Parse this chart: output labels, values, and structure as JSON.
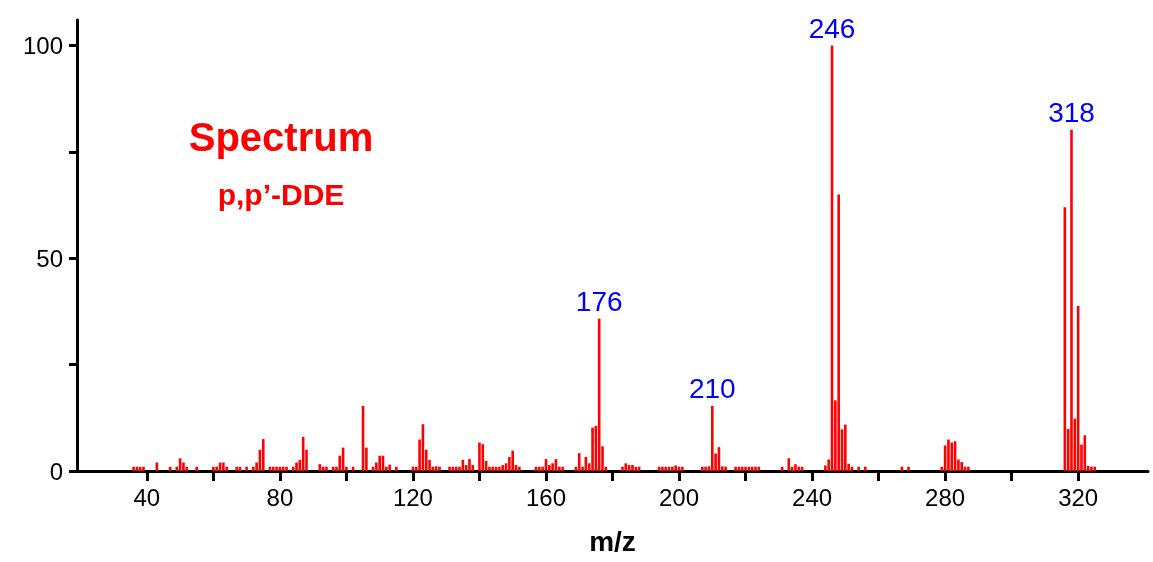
{
  "chart_data": {
    "type": "bar",
    "title": "Spectrum",
    "subtitle": "p,p’-DDE",
    "xlabel": "m/z",
    "x": [
      36,
      37,
      38,
      39,
      43,
      47,
      49,
      50,
      51,
      52,
      55,
      60,
      61,
      62,
      63,
      64,
      67,
      68,
      70,
      72,
      73,
      74,
      75,
      77,
      78,
      79,
      80,
      81,
      82,
      84,
      85,
      86,
      87,
      88,
      92,
      93,
      94,
      96,
      97,
      98,
      99,
      100,
      102,
      105,
      106,
      108,
      109,
      110,
      111,
      112,
      113,
      115,
      120,
      121,
      122,
      123,
      124,
      125,
      126,
      127,
      128,
      131,
      132,
      133,
      134,
      135,
      136,
      137,
      138,
      140,
      141,
      142,
      143,
      144,
      145,
      146,
      147,
      148,
      149,
      150,
      151,
      152,
      157,
      158,
      159,
      160,
      161,
      162,
      163,
      164,
      165,
      169,
      170,
      171,
      172,
      173,
      174,
      175,
      176,
      177,
      178,
      183,
      184,
      185,
      186,
      187,
      188,
      194,
      195,
      196,
      197,
      198,
      199,
      200,
      201,
      207,
      208,
      209,
      210,
      211,
      212,
      213,
      214,
      217,
      218,
      219,
      220,
      221,
      222,
      223,
      224,
      231,
      233,
      234,
      235,
      236,
      237,
      244,
      245,
      246,
      247,
      248,
      249,
      250,
      251,
      252,
      254,
      256,
      267,
      269,
      279,
      280,
      281,
      282,
      283,
      284,
      285,
      286,
      287,
      316,
      317,
      318,
      319,
      320,
      321,
      322,
      323,
      324,
      325
    ],
    "values": [
      1,
      1,
      1,
      1,
      2,
      1,
      1,
      3,
      2,
      1,
      1,
      1,
      1,
      2,
      2,
      1,
      1,
      1,
      1,
      1,
      2,
      5,
      7.5,
      1,
      1,
      1,
      1,
      1,
      1,
      1,
      2,
      2.6,
      8,
      5,
      1.6,
      1,
      1,
      1,
      1,
      3.6,
      5.5,
      1,
      1,
      15.3,
      5.5,
      1,
      2,
      3.6,
      3.6,
      1,
      1.5,
      1,
      1,
      1,
      7.4,
      11,
      5,
      2.6,
      1,
      1.1,
      1,
      1,
      1,
      1,
      1,
      2.6,
      1.4,
      2.8,
      1.4,
      6.7,
      6.3,
      2.4,
      1,
      1,
      1,
      1,
      1.4,
      1.8,
      3.3,
      4.8,
      1.4,
      1,
      1,
      1,
      1,
      2.8,
      1.4,
      1.8,
      2.8,
      1,
      1,
      1,
      4.2,
      1,
      3.3,
      1.8,
      10.2,
      10.6,
      35.8,
      5.8,
      1,
      1,
      1.8,
      1.4,
      1.4,
      1,
      1,
      1,
      1,
      1,
      1,
      1,
      1.3,
      1,
      1,
      1,
      1,
      1.1,
      15.3,
      4.1,
      5.6,
      1.1,
      1,
      1,
      1,
      1,
      1,
      1,
      1,
      1,
      1,
      1,
      3,
      1,
      1.6,
      1,
      1,
      1.3,
      2.7,
      100,
      16.6,
      65,
      9.8,
      10.9,
      1.7,
      1,
      1,
      1,
      1,
      1,
      1,
      6,
      7.4,
      6.7,
      7,
      2.7,
      2.1,
      1,
      1,
      62,
      9.9,
      80.2,
      12.3,
      38.8,
      6.2,
      8.4,
      1.2,
      1,
      1
    ],
    "color": "#ff0000",
    "annotations": [
      {
        "text": "176",
        "x": 176,
        "y": 35.8
      },
      {
        "text": "210",
        "x": 210,
        "y": 15.3
      },
      {
        "text": "246",
        "x": 246,
        "y": 100
      },
      {
        "text": "318",
        "x": 318,
        "y": 80.2
      }
    ],
    "xlim": [
      19,
      341
    ],
    "xticks": [
      40,
      {
        "value": 60,
        "label": null
      },
      80,
      {
        "value": 100,
        "label": null
      },
      120,
      {
        "value": 140,
        "label": null
      },
      160,
      {
        "value": 180,
        "label": null
      },
      200,
      {
        "value": 220,
        "label": null
      },
      240,
      {
        "value": 260,
        "label": null
      },
      280,
      {
        "value": 300,
        "label": null
      },
      320
    ],
    "ylim": [
      0,
      106
    ],
    "yticks": [
      0,
      {
        "value": 25,
        "label": null
      },
      50,
      {
        "value": 75,
        "label": null
      },
      100
    ],
    "grid": false
  }
}
